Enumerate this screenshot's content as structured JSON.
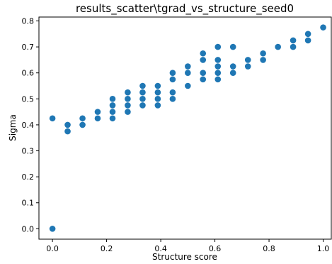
{
  "chart_data": {
    "type": "scatter",
    "title": "results_scatter\\tgrad_vs_structure_seed0",
    "xlabel": "Structure score",
    "ylabel": "Sigma",
    "xlim": [
      -0.05,
      1.03
    ],
    "ylim": [
      -0.04,
      0.815
    ],
    "xticks": [
      0.0,
      0.2,
      0.4,
      0.6,
      0.8,
      1.0
    ],
    "xtick_labels": [
      "0.0",
      "0.2",
      "0.4",
      "0.6",
      "0.8",
      "1.0"
    ],
    "yticks": [
      0.0,
      0.1,
      0.2,
      0.3,
      0.4,
      0.5,
      0.6,
      0.7,
      0.8
    ],
    "ytick_labels": [
      "0.0",
      "0.1",
      "0.2",
      "0.3",
      "0.4",
      "0.5",
      "0.6",
      "0.7",
      "0.8"
    ],
    "grid": false,
    "point_color": "#1f77b4",
    "points": [
      [
        0.0,
        0.0
      ],
      [
        0.0,
        0.425
      ],
      [
        0.056,
        0.375
      ],
      [
        0.056,
        0.4
      ],
      [
        0.111,
        0.4
      ],
      [
        0.111,
        0.425
      ],
      [
        0.167,
        0.425
      ],
      [
        0.167,
        0.45
      ],
      [
        0.222,
        0.425
      ],
      [
        0.222,
        0.45
      ],
      [
        0.222,
        0.475
      ],
      [
        0.222,
        0.5
      ],
      [
        0.278,
        0.45
      ],
      [
        0.278,
        0.475
      ],
      [
        0.278,
        0.5
      ],
      [
        0.278,
        0.525
      ],
      [
        0.333,
        0.475
      ],
      [
        0.333,
        0.5
      ],
      [
        0.333,
        0.525
      ],
      [
        0.333,
        0.55
      ],
      [
        0.389,
        0.475
      ],
      [
        0.389,
        0.5
      ],
      [
        0.389,
        0.525
      ],
      [
        0.389,
        0.55
      ],
      [
        0.444,
        0.5
      ],
      [
        0.444,
        0.525
      ],
      [
        0.444,
        0.575
      ],
      [
        0.444,
        0.6
      ],
      [
        0.5,
        0.55
      ],
      [
        0.5,
        0.6
      ],
      [
        0.5,
        0.625
      ],
      [
        0.556,
        0.575
      ],
      [
        0.556,
        0.6
      ],
      [
        0.556,
        0.65
      ],
      [
        0.556,
        0.675
      ],
      [
        0.611,
        0.575
      ],
      [
        0.611,
        0.6
      ],
      [
        0.611,
        0.625
      ],
      [
        0.611,
        0.65
      ],
      [
        0.611,
        0.7
      ],
      [
        0.667,
        0.6
      ],
      [
        0.667,
        0.625
      ],
      [
        0.667,
        0.7
      ],
      [
        0.722,
        0.625
      ],
      [
        0.722,
        0.65
      ],
      [
        0.778,
        0.65
      ],
      [
        0.778,
        0.675
      ],
      [
        0.833,
        0.7
      ],
      [
        0.889,
        0.7
      ],
      [
        0.889,
        0.725
      ],
      [
        0.944,
        0.725
      ],
      [
        0.944,
        0.75
      ],
      [
        1.0,
        0.775
      ]
    ]
  }
}
